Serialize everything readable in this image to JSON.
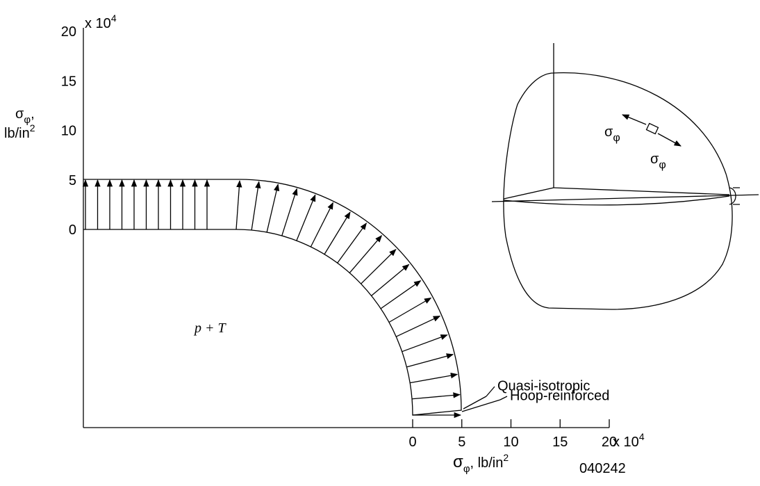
{
  "y_axis": {
    "ticks": [
      "0",
      "5",
      "10",
      "15",
      "20"
    ],
    "multiplier": "x 10",
    "multiplier_exp": "4",
    "label": {
      "symbol": "σ",
      "subscript": "φ",
      "comma": ",",
      "unit": "lb/in",
      "superscript": "2"
    }
  },
  "x_axis": {
    "ticks": [
      "0",
      "5",
      "10",
      "15",
      "20"
    ],
    "multiplier": "x 10",
    "multiplier_exp": "4",
    "label": {
      "symbol": "σ",
      "subscript": "φ",
      "unit": ", lb/in",
      "superscript": "2"
    }
  },
  "load_label": "p + T",
  "callouts": [
    "Quasi-isotropic",
    "Hoop-reinforced"
  ],
  "inset": {
    "stress_labels": [
      {
        "symbol": "σ",
        "subscript": "φ"
      },
      {
        "symbol": "σ",
        "subscript": "φ"
      }
    ]
  },
  "figure_id": "040242"
}
